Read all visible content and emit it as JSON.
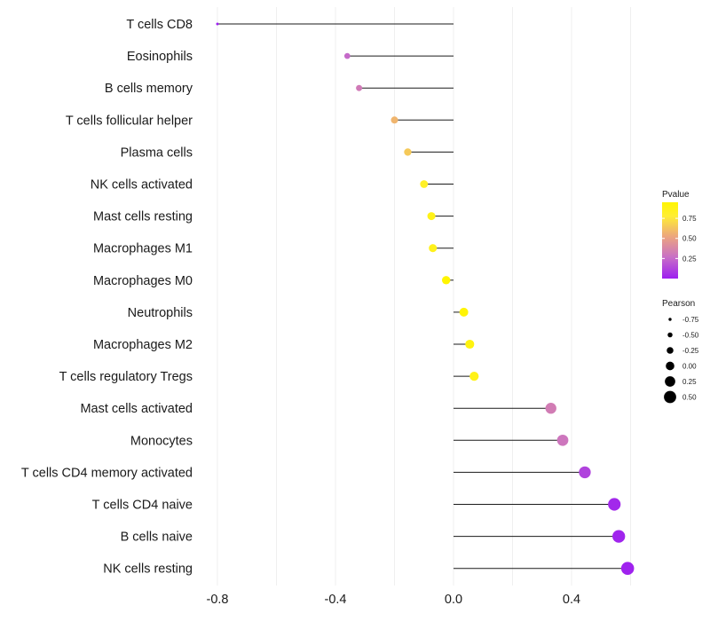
{
  "chart_data": {
    "type": "lollipop",
    "title": "",
    "xlabel": "",
    "ylabel": "",
    "xlim": [
      -0.8,
      0.6
    ],
    "x_ticks": [
      -0.8,
      -0.4,
      0.0,
      0.4
    ],
    "x_tick_labels": [
      "-0.8",
      "-0.4",
      "0.0",
      "0.4"
    ],
    "grid": true,
    "baseline": 0,
    "categories": [
      "T cells CD8",
      "Eosinophils",
      "B cells memory",
      "T cells follicular helper",
      "Plasma cells",
      "NK cells activated",
      "Mast cells resting",
      "Macrophages M1",
      "Macrophages M0",
      "Neutrophils",
      "Macrophages M2",
      "T cells regulatory  Tregs",
      "Mast cells activated",
      "Monocytes",
      "T cells CD4 memory activated",
      "T cells CD4 naive",
      "B cells naive",
      "NK cells resting"
    ],
    "pearson": [
      -0.8,
      -0.36,
      -0.32,
      -0.2,
      -0.155,
      -0.1,
      -0.075,
      -0.07,
      -0.025,
      0.035,
      0.055,
      0.07,
      0.33,
      0.37,
      0.445,
      0.545,
      0.56,
      0.59
    ],
    "pvalue": [
      0.0,
      0.25,
      0.32,
      0.58,
      0.65,
      0.82,
      0.87,
      0.86,
      0.98,
      0.93,
      0.9,
      0.87,
      0.33,
      0.3,
      0.12,
      0.03,
      0.02,
      0.01
    ],
    "legend_pvalue": {
      "title": "Pvalue",
      "ticks": [
        0.75,
        0.5,
        0.25
      ],
      "tick_labels": [
        "0.75",
        "0.50",
        "0.25"
      ],
      "range": [
        0,
        0.95
      ],
      "colors": [
        "#9d1ff0",
        "#c86fc6",
        "#eca57f",
        "#ffee33",
        "#fff500"
      ],
      "position": "right"
    },
    "legend_pearson": {
      "title": "Pearson",
      "values": [
        -0.75,
        -0.5,
        -0.25,
        0.0,
        0.25,
        0.5
      ],
      "labels": [
        "-0.75",
        "-0.50",
        "-0.25",
        "0.00",
        "0.25",
        "0.50"
      ],
      "position": "right"
    }
  }
}
